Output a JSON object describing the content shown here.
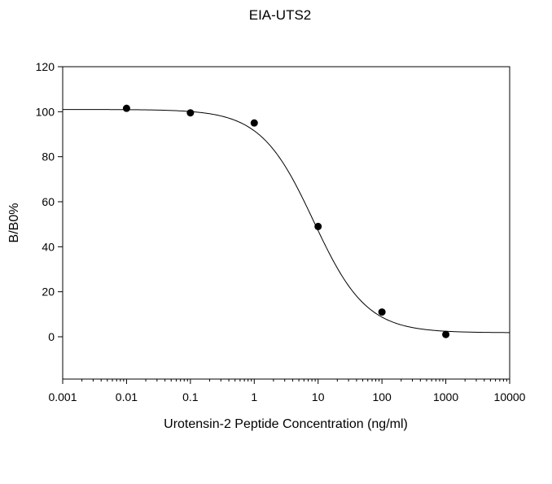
{
  "chart_data": {
    "type": "scatter",
    "title": "EIA-UTS2",
    "xlabel": "Urotensin-2 Peptide Concentration (ng/ml)",
    "ylabel": "B/B0%",
    "x_scale": "log",
    "xlim": [
      0.001,
      10000
    ],
    "ylim": [
      -20,
      120
    ],
    "x_ticks": [
      0.001,
      0.01,
      0.1,
      1,
      10,
      100,
      1000,
      10000
    ],
    "x_tick_labels": [
      "0.001",
      "0.01",
      "0.1",
      "1",
      "10",
      "100",
      "1000",
      "10000"
    ],
    "y_ticks": [
      0,
      20,
      40,
      60,
      80,
      100,
      120
    ],
    "y_tick_labels": [
      "0",
      "20",
      "40",
      "60",
      "80",
      "100",
      "120"
    ],
    "grid": false,
    "legend": "none",
    "series": [
      {
        "points": [
          {
            "x": 0.01,
            "y": 101.5
          },
          {
            "x": 0.1,
            "y": 99.5
          },
          {
            "x": 1,
            "y": 95
          },
          {
            "x": 10,
            "y": 49
          },
          {
            "x": 100,
            "y": 11
          },
          {
            "x": 1000,
            "y": 1
          }
        ],
        "marker_color": "#000000"
      }
    ],
    "fit_curve": {
      "model": "4PL",
      "top": 101,
      "bottom": 1.8,
      "ec50": 8.5,
      "hill": 1.05,
      "color": "#000000"
    }
  }
}
